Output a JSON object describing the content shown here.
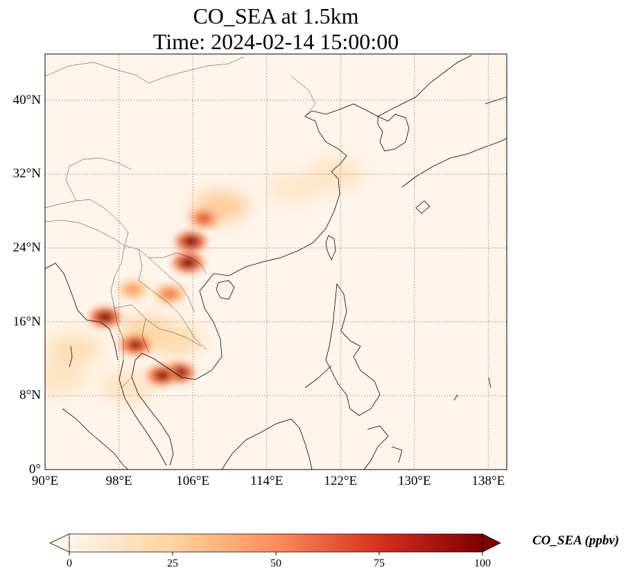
{
  "figure": {
    "title_line1": "CO_SEA at 1.5km",
    "title_line2": "Time: 2024-02-14 15:00:00"
  },
  "map": {
    "projection": "PlateCarree",
    "lon_range": [
      90,
      140
    ],
    "lat_range": [
      0,
      45
    ],
    "gridlines": "dotted gray",
    "background_color": "#fff5eb",
    "lon_ticks": [
      {
        "value": 90,
        "label": "90°E"
      },
      {
        "value": 98,
        "label": "98°E"
      },
      {
        "value": 106,
        "label": "106°E"
      },
      {
        "value": 114,
        "label": "114°E"
      },
      {
        "value": 122,
        "label": "122°E"
      },
      {
        "value": 130,
        "label": "130°E"
      },
      {
        "value": 138,
        "label": "138°E"
      }
    ],
    "lat_ticks": [
      {
        "value": 0,
        "label": "0°"
      },
      {
        "value": 8,
        "label": "8°N"
      },
      {
        "value": 16,
        "label": "16°N"
      },
      {
        "value": 24,
        "label": "24°N"
      },
      {
        "value": 32,
        "label": "32°N"
      },
      {
        "value": 40,
        "label": "40°N"
      }
    ],
    "hotspots": [
      {
        "lon": 96.5,
        "lat": 16.5,
        "value": 100
      },
      {
        "lon": 105.8,
        "lat": 24.7,
        "value": 100
      },
      {
        "lon": 105.5,
        "lat": 22.4,
        "value": 100
      },
      {
        "lon": 104.5,
        "lat": 10.5,
        "value": 100
      },
      {
        "lon": 102.7,
        "lat": 10.2,
        "value": 95
      },
      {
        "lon": 99.8,
        "lat": 13.5,
        "value": 90
      },
      {
        "lon": 107.2,
        "lat": 27.2,
        "value": 65
      },
      {
        "lon": 103.5,
        "lat": 19.0,
        "value": 55
      },
      {
        "lon": 99.5,
        "lat": 19.5,
        "value": 45
      }
    ],
    "plumes": [
      {
        "lon": 109,
        "lat": 28.5,
        "value": 30
      },
      {
        "lon": 117,
        "lat": 30.5,
        "value": 12
      },
      {
        "lon": 121.5,
        "lat": 32,
        "value": 15
      },
      {
        "lon": 93,
        "lat": 13,
        "value": 20
      },
      {
        "lon": 91.5,
        "lat": 10,
        "value": 15
      },
      {
        "lon": 101,
        "lat": 15,
        "value": 25
      },
      {
        "lon": 104,
        "lat": 14,
        "value": 22
      },
      {
        "lon": 99,
        "lat": 9,
        "value": 15
      }
    ]
  },
  "colorbar": {
    "cmap": "OrRd",
    "vmin": 0,
    "vmax": 100,
    "extend": "both",
    "label": "CO_SEA (ppbv)",
    "ticks": [
      {
        "value": 0,
        "label": "0"
      },
      {
        "value": 25,
        "label": "25"
      },
      {
        "value": 50,
        "label": "50"
      },
      {
        "value": 75,
        "label": "75"
      },
      {
        "value": 100,
        "label": "100"
      }
    ],
    "colors": [
      "#fff5eb",
      "#fdd49e",
      "#fc8d59",
      "#d7301f",
      "#7f0000"
    ]
  }
}
